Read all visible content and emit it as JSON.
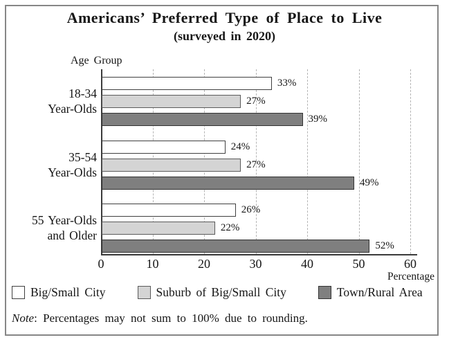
{
  "title": "Americans’ Preferred Type of Place to Live",
  "subtitle": "(surveyed in 2020)",
  "axis_top_label": "Age Group",
  "axis_bottom_label": "Percentage",
  "note": {
    "label": "Note",
    "text": ": Percentages may not sum to 100% due to rounding."
  },
  "chart_data": {
    "type": "bar",
    "orientation": "horizontal",
    "title": "Americans’ Preferred Type of Place to Live",
    "subtitle": "(surveyed in 2020)",
    "ylabel": "Age Group",
    "xlabel": "Percentage",
    "categories": [
      [
        "18-34",
        "Year-Olds"
      ],
      [
        "35-54",
        "Year-Olds"
      ],
      [
        "55 Year-Olds",
        "and Older"
      ]
    ],
    "series": [
      {
        "name": "Big/Small City",
        "color": "#ffffff",
        "border": "#3f3f3f",
        "values": [
          33,
          24,
          26
        ]
      },
      {
        "name": "Suburb of Big/Small City",
        "color": "#d4d4d4",
        "border": "#5a5a5a",
        "values": [
          27,
          27,
          22
        ]
      },
      {
        "name": "Town/Rural Area",
        "color": "#7f7f7f",
        "border": "#333333",
        "values": [
          39,
          49,
          52
        ]
      }
    ],
    "value_suffix": "%",
    "x_ticks": [
      0,
      10,
      20,
      30,
      40,
      50,
      60
    ],
    "xlim": [
      0,
      60
    ],
    "grid": "dashed-vertical",
    "legend_position": "bottom",
    "frame_color": "#868686"
  }
}
